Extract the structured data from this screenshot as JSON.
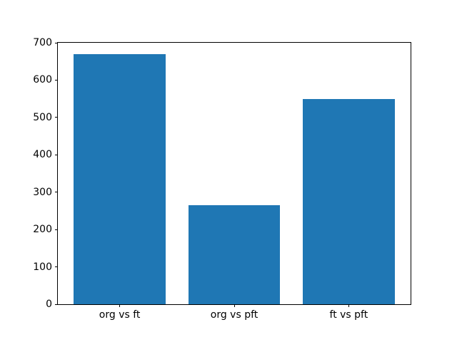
{
  "chart_data": {
    "type": "bar",
    "categories": [
      "org vs ft",
      "org vs pft",
      "ft vs pft"
    ],
    "values": [
      670,
      265,
      550
    ],
    "yticks": [
      0,
      100,
      200,
      300,
      400,
      500,
      600,
      700
    ],
    "ylim": [
      0,
      700
    ],
    "xlim": [
      -0.54,
      2.54
    ],
    "bar_width": 0.8,
    "bar_color": "#1f77b4",
    "grid": false,
    "legend_position": "none",
    "spine_color": "#000000",
    "background_color": "#ffffff",
    "tick_label_color": "#000000"
  }
}
